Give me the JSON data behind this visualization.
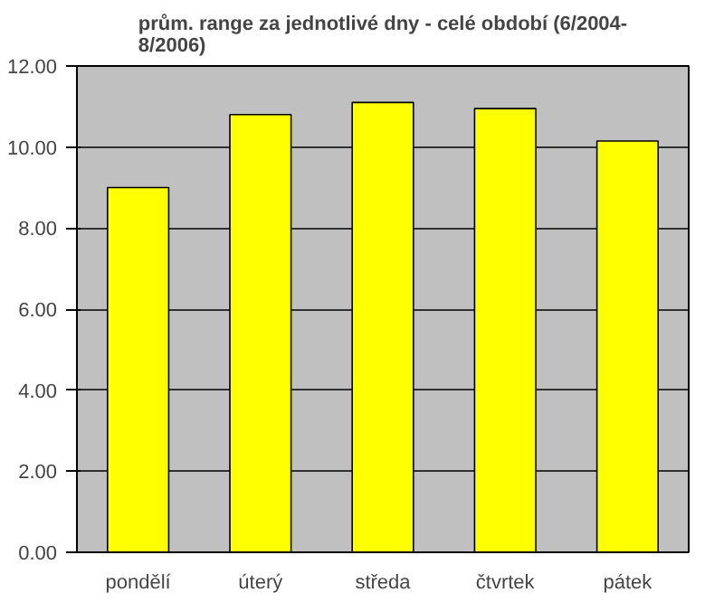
{
  "chart_data": {
    "type": "bar",
    "title": "prům. range za jednotlivé dny - celé období (6/2004-\n8/2006)",
    "categories": [
      "pondělí",
      "úterý",
      "středa",
      "čtvrtek",
      "pátek"
    ],
    "values": [
      9.0,
      10.8,
      11.1,
      10.95,
      10.15
    ],
    "color": "#ffff00",
    "ylim": [
      0,
      12
    ],
    "yticks": [
      {
        "value": 0,
        "label": "0.00"
      },
      {
        "value": 2,
        "label": "2.00"
      },
      {
        "value": 4,
        "label": "4.00"
      },
      {
        "value": 6,
        "label": "6.00"
      },
      {
        "value": 8,
        "label": "8.00"
      },
      {
        "value": 10,
        "label": "10.00"
      },
      {
        "value": 12,
        "label": "12.00"
      }
    ],
    "grid": "y"
  }
}
